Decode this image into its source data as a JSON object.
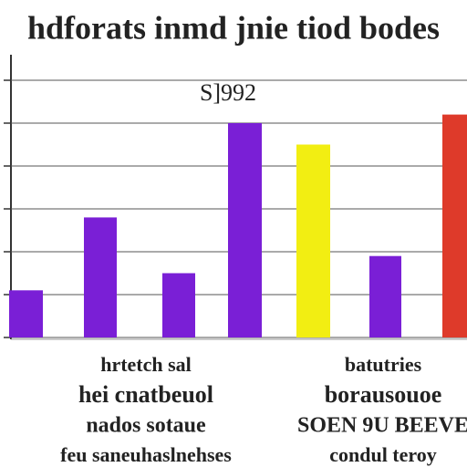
{
  "chart_data": {
    "type": "bar",
    "title": "hdforats inmd jnie tiod bodes",
    "annotation": "S]992",
    "categories": [
      null,
      null,
      null,
      null,
      null,
      null,
      null
    ],
    "values": [
      1.1,
      2.8,
      1.5,
      5.0,
      4.5,
      1.9,
      5.2
    ],
    "colors": [
      "#7a1fd6",
      "#7a1fd6",
      "#7a1fd6",
      "#7a1fd6",
      "#f2ee12",
      "#7a1fd6",
      "#de3a2a"
    ],
    "ylim": [
      0,
      7
    ],
    "yticks": [
      0,
      1,
      2,
      3,
      4,
      5,
      6
    ],
    "grid": true
  },
  "notes": {
    "left": [
      "hrtetch sal",
      "hei cnatbeuol",
      "nados sotaue",
      "feu saneuhaslnehses"
    ],
    "right": [
      "batutries",
      "borausouoe",
      "SOEN 9U BEEVE",
      "condul teroy"
    ]
  }
}
